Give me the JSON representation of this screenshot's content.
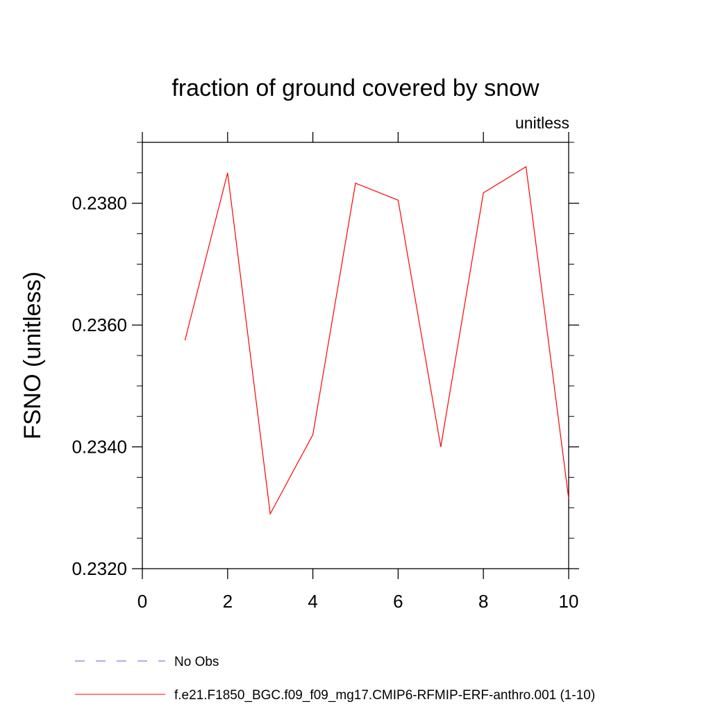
{
  "chart_data": {
    "type": "line",
    "title": "fraction of ground covered by snow",
    "subtitle": "unitless",
    "xlabel": "",
    "ylabel": "FSNO  (unitless)",
    "xlim": [
      0,
      10
    ],
    "ylim": [
      0.232,
      0.239
    ],
    "x_ticks": [
      "0",
      "2",
      "4",
      "6",
      "8",
      "10"
    ],
    "y_ticks": [
      "0.2320",
      "0.2340",
      "0.2360",
      "0.2380"
    ],
    "grid": false,
    "legend_position": "bottom",
    "series": [
      {
        "name": "f.e21.F1850_BGC.f09_f09_mg17.CMIP6-RFMIP-ERF-anthro.001 (1-10)",
        "color": "#ff0000",
        "style": "solid",
        "x": [
          1,
          2,
          3,
          4,
          5,
          6,
          7,
          8,
          9,
          10
        ],
        "y": [
          0.23575,
          0.2385,
          0.2329,
          0.2342,
          0.23833,
          0.23805,
          0.234,
          0.23817,
          0.2386,
          0.23315
        ]
      }
    ],
    "legend": [
      {
        "label": "No Obs",
        "color": "#6a5acd",
        "style": "dashed"
      },
      {
        "label": "f.e21.F1850_BGC.f09_f09_mg17.CMIP6-RFMIP-ERF-anthro.001 (1-10)",
        "color": "#ff0000",
        "style": "solid"
      }
    ]
  }
}
